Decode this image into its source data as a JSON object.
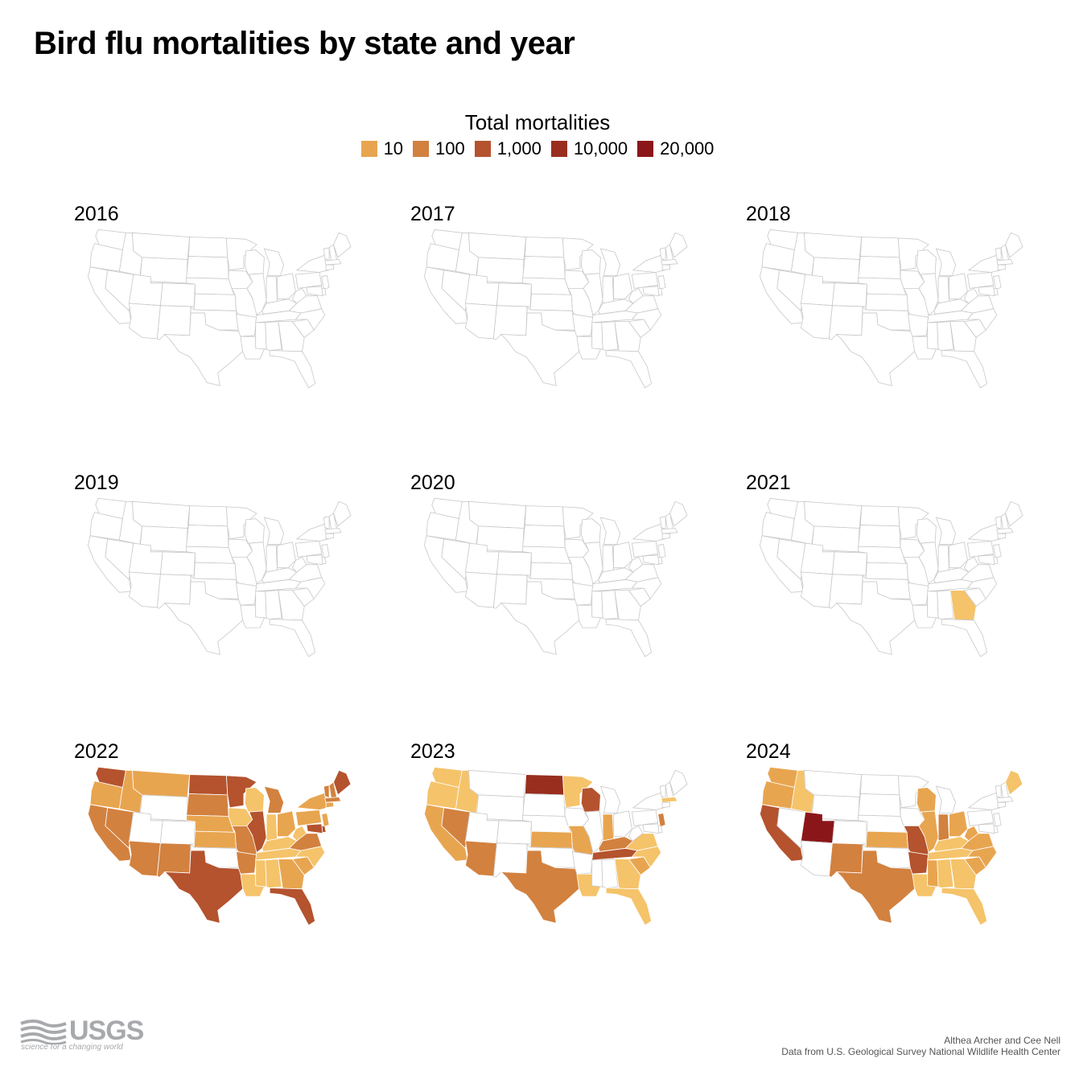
{
  "title": "Bird flu mortalities by state and year",
  "legend": {
    "title": "Total mortalities",
    "items": [
      {
        "label": "10",
        "color": "#E8A550"
      },
      {
        "label": "100",
        "color": "#D2813F"
      },
      {
        "label": "1,000",
        "color": "#B4532E"
      },
      {
        "label": "10,000",
        "color": "#992E1E"
      },
      {
        "label": "20,000",
        "color": "#8B1619"
      }
    ]
  },
  "map_colors": {
    "empty": "#ffffff",
    "border": "#c8c8c8",
    "outline": "#555555",
    "light_yellow": "#F5C36A"
  },
  "panels": [
    {
      "year": "2016",
      "states": {}
    },
    {
      "year": "2017",
      "states": {}
    },
    {
      "year": "2018",
      "states": {}
    },
    {
      "year": "2019",
      "states": {}
    },
    {
      "year": "2020",
      "states": {}
    },
    {
      "year": "2021",
      "states": {
        "GA": 0
      }
    },
    {
      "year": "2022",
      "states": {
        "WA": 3,
        "OR": 1,
        "CA": 2,
        "NV": 2,
        "ID": 1,
        "MT": 1,
        "AZ": 2,
        "NM": 2,
        "ND": 3,
        "SD": 2,
        "NE": 1,
        "KS": 1,
        "TX": 3,
        "MN": 3,
        "IA": 0,
        "MO": 2,
        "AR": 2,
        "LA": 0,
        "WI": 0,
        "IL": 3,
        "MI": 2,
        "IN": 0,
        "OH": 1,
        "KY": 0,
        "TN": 0,
        "MS": 0,
        "AL": 0,
        "GA": 1,
        "FL": 3,
        "SC": 1,
        "NC": 0,
        "VA": 2,
        "WV": 0,
        "PA": 1,
        "NY": 1,
        "VT": 2,
        "NH": 2,
        "ME": 3,
        "MA": 2,
        "CT": 1,
        "NJ": 1,
        "DE": 3,
        "MD": 3
      }
    },
    {
      "year": "2023",
      "states": {
        "WA": 0,
        "OR": 0,
        "ID": 0,
        "CA": 1,
        "NV": 2,
        "AZ": 2,
        "ND": 4,
        "MN": 0,
        "WI": 3,
        "KS": 1,
        "MO": 1,
        "TX": 2,
        "LA": 0,
        "TN": 3,
        "KY": 2,
        "IN": 1,
        "NC": 0,
        "VA": 0,
        "SC": 1,
        "GA": 0,
        "FL": 0,
        "NJ": 2,
        "MA": 0
      }
    },
    {
      "year": "2024",
      "states": {
        "WA": 1,
        "OR": 1,
        "CA": 3,
        "ID": 0,
        "UT": 5,
        "NM": 2,
        "TX": 2,
        "KS": 1,
        "MO": 3,
        "AR": 3,
        "LA": 0,
        "MS": 1,
        "IL": 1,
        "WI": 1,
        "IN": 2,
        "OH": 1,
        "KY": 0,
        "TN": 0,
        "AL": 0,
        "GA": 0,
        "FL": 0,
        "SC": 1,
        "NC": 1,
        "VA": 1,
        "WV": 1,
        "ME": 0
      }
    }
  ],
  "footer": {
    "logo_text": "USGS",
    "logo_tagline": "science for a changing world",
    "authors": "Althea Archer and Cee Nell",
    "source": "Data from U.S. Geological Survey National Wildlife Health Center"
  }
}
